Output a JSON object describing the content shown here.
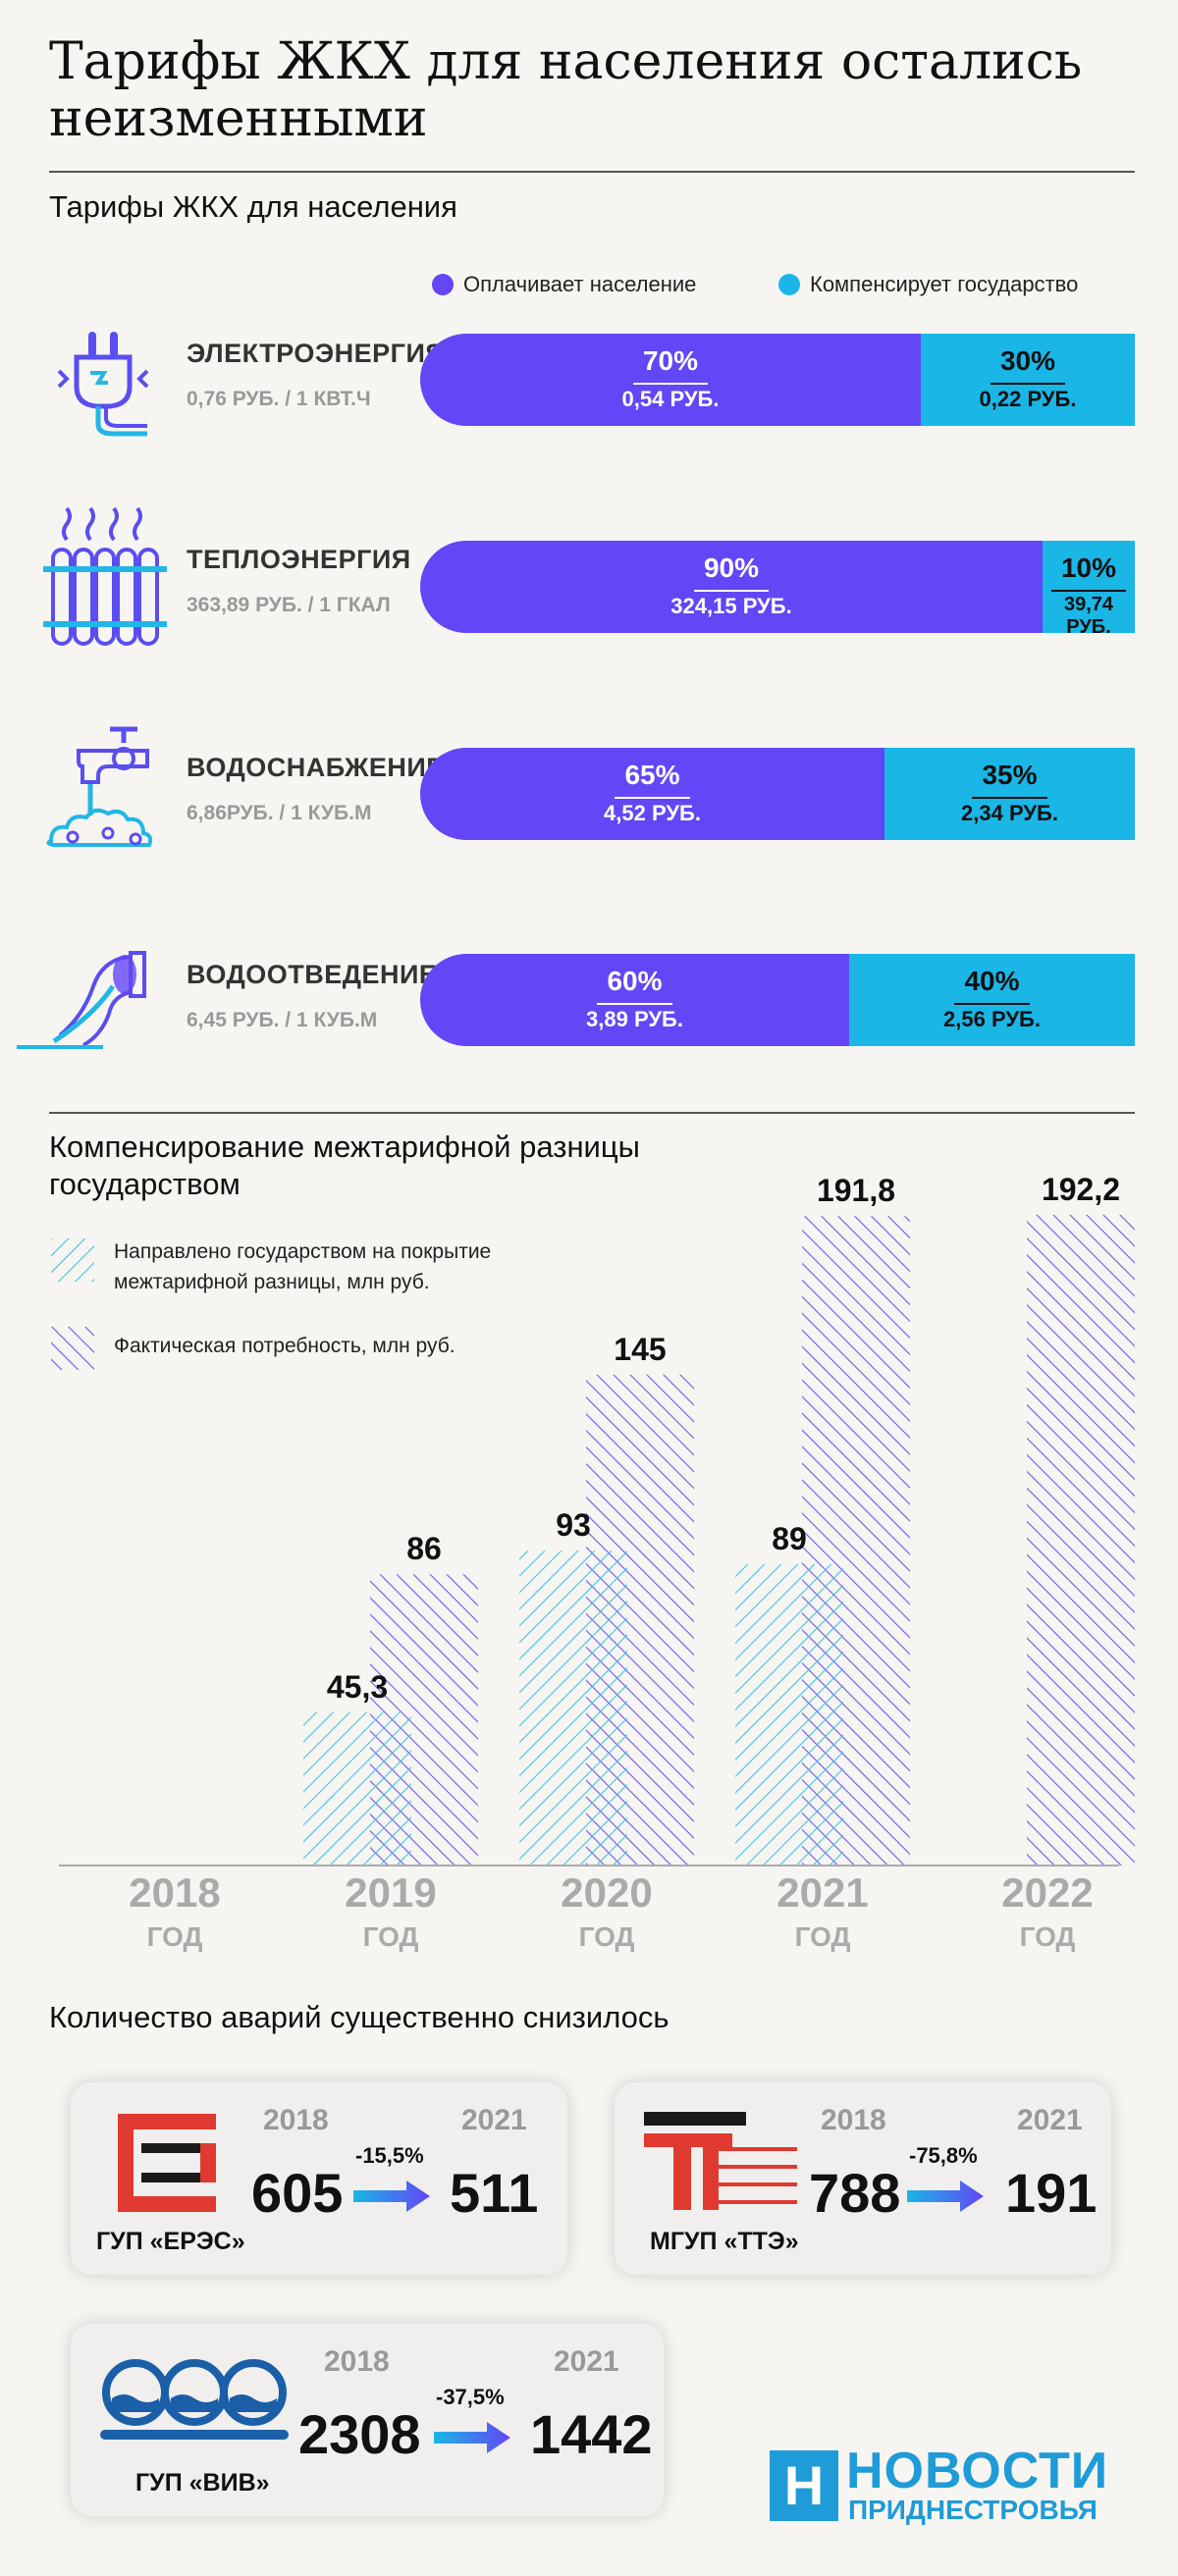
{
  "title": "Тарифы ЖКХ для населения остались неизменными",
  "tariffs": {
    "heading": "Тарифы ЖКХ для населения",
    "legend": {
      "population": "Оплачивает население",
      "state": "Компенсирует государство"
    },
    "colors": {
      "population": "#6346f5",
      "state": "#1ab6e6"
    },
    "rows": [
      {
        "icon": "electric-plug-icon",
        "title": "ЭЛЕКТРОЭНЕРГИЯ",
        "sub": "0,76 РУБ. / 1 КВТ.Ч",
        "pop_pct": "70%",
        "pop_rub": "0,54 РУБ.",
        "state_pct": "30%",
        "state_rub": "0,22 РУБ.",
        "pop_share": 0.7
      },
      {
        "icon": "radiator-icon",
        "title": "ТЕПЛОЭНЕРГИЯ",
        "sub": "363,89 РУБ. / 1 ГКАЛ",
        "pop_pct": "90%",
        "pop_rub": "324,15 РУБ.",
        "state_pct": "10%",
        "state_rub": "39,74 РУБ.",
        "pop_share": 0.9
      },
      {
        "icon": "water-tap-icon",
        "title": "ВОДОСНАБЖЕНИЕ",
        "sub": "6,86РУБ. / 1 КУБ.М",
        "pop_pct": "65%",
        "pop_rub": "4,52 РУБ.",
        "state_pct": "35%",
        "state_rub": "2,34 РУБ.",
        "pop_share": 0.65
      },
      {
        "icon": "drain-pipe-icon",
        "title": "ВОДООТВЕДЕНИЕ",
        "sub": "6,45 РУБ. / 1 КУБ.М",
        "pop_pct": "60%",
        "pop_rub": "3,89 РУБ.",
        "state_pct": "40%",
        "state_rub": "2,56 РУБ.",
        "pop_share": 0.6
      }
    ]
  },
  "compensation": {
    "heading": "Компенсирование межтарифной разницы государством",
    "legend_state": "Направлено государством на покрытие межтарифной разницы, млн руб.",
    "legend_need": "Фактическая потребность, млн руб.",
    "year_suffix": "ГОД"
  },
  "chart_data": {
    "type": "bar",
    "categories": [
      "2018",
      "2019",
      "2020",
      "2021",
      "2022"
    ],
    "series": [
      {
        "name": "Направлено государством на покрытие межтарифной разницы, млн руб.",
        "values": [
          null,
          45.3,
          93,
          89,
          null
        ],
        "labels": [
          "",
          "45,3",
          "93",
          "89",
          ""
        ]
      },
      {
        "name": "Фактическая потребность, млн руб.",
        "values": [
          null,
          86,
          145,
          191.8,
          192.2
        ],
        "labels": [
          "",
          "86",
          "145",
          "191,8",
          "192,2"
        ]
      }
    ],
    "ylim": [
      0,
      200
    ],
    "xlabel": "",
    "ylabel": ""
  },
  "accidents": {
    "heading": "Количество аварий существенно снизилось",
    "cards": [
      {
        "org": "ГУП «ЕРЭС»",
        "y1": "2018",
        "v1": "605",
        "change": "-15,5%",
        "y2": "2021",
        "v2": "511"
      },
      {
        "org": "МГУП «ТТЭ»",
        "y1": "2018",
        "v1": "788",
        "change": "-75,8%",
        "y2": "2021",
        "v2": "191"
      },
      {
        "org": "ГУП «ВИВ»",
        "y1": "2018",
        "v1": "2308",
        "change": "-37,5%",
        "y2": "2021",
        "v2": "1442"
      }
    ]
  },
  "brand": {
    "line1": "НОВОСТИ",
    "line2": "ПРИДНЕСТРОВЬЯ",
    "mark": "Н"
  }
}
